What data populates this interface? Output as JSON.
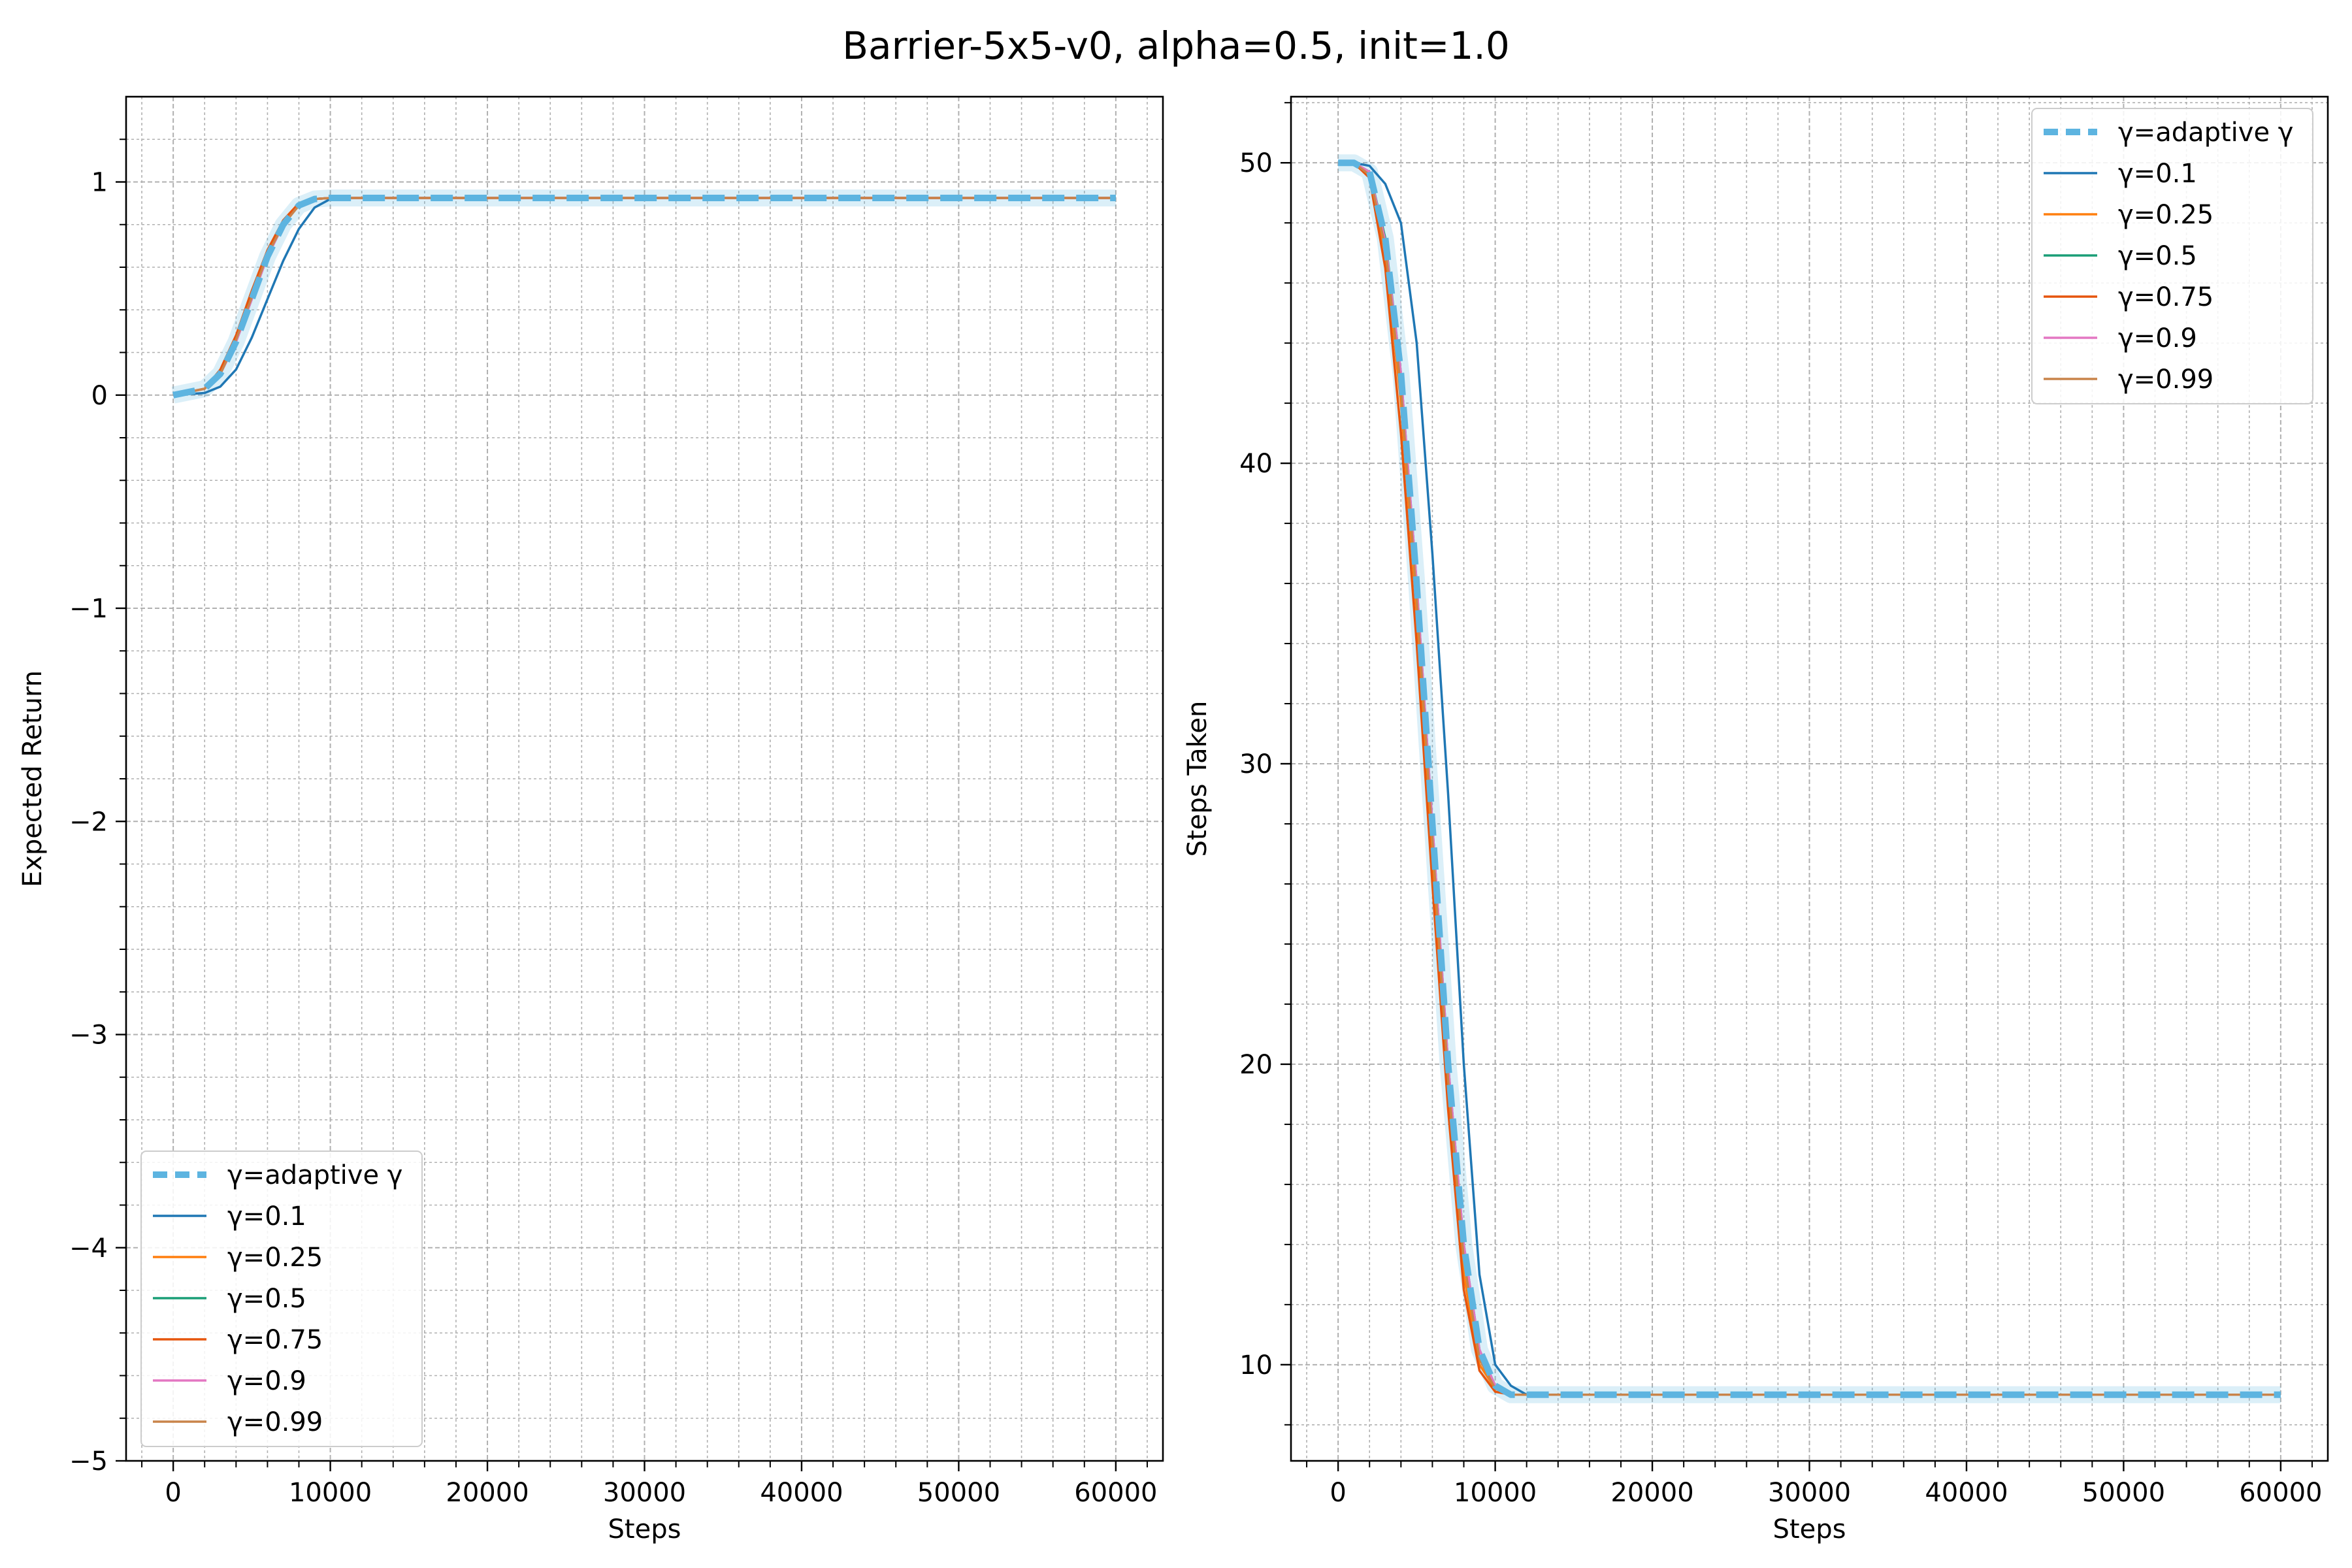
{
  "figure_title": "Barrier-5x5-v0, alpha=0.5, init=1.0",
  "colors": {
    "adaptive": "#5DB4E0",
    "g0_1": "#1f77b4",
    "g0_25": "#ff7f0e",
    "g0_5": "#1a9e77",
    "g0_75": "#e6550d",
    "g0_9": "#e377c2",
    "g0_99": "#c9844a",
    "grid": "#b0b0b0"
  },
  "chart_data": [
    {
      "type": "line",
      "title": "",
      "xlabel": "Steps",
      "ylabel": "Expected Return",
      "xlim": [
        -3000,
        63000
      ],
      "ylim": [
        -5,
        1.4
      ],
      "xticks": [
        0,
        10000,
        20000,
        30000,
        40000,
        50000,
        60000
      ],
      "xtick_labels": [
        "0",
        "10000",
        "20000",
        "30000",
        "40000",
        "50000",
        "60000"
      ],
      "yticks": [
        -5,
        -4,
        -3,
        -2,
        -1,
        0,
        1
      ],
      "ytick_labels": [
        "−5",
        "−4",
        "−3",
        "−2",
        "−1",
        "0",
        "1"
      ],
      "grid": true,
      "legend_position": "lower-left",
      "x": [
        0,
        2000,
        3000,
        4000,
        5000,
        6000,
        7000,
        8000,
        9000,
        10000,
        11000,
        12000,
        14000,
        20000,
        30000,
        40000,
        50000,
        60000
      ],
      "series": [
        {
          "name": "γ=adaptive γ",
          "color_key": "adaptive",
          "dashed": true,
          "values": [
            0,
            0.03,
            0.1,
            0.25,
            0.45,
            0.65,
            0.8,
            0.89,
            0.92,
            0.925,
            0.925,
            0.925,
            0.925,
            0.925,
            0.925,
            0.925,
            0.925,
            0.925
          ]
        },
        {
          "name": "γ=0.1",
          "color_key": "g0_1",
          "values": [
            0,
            0.01,
            0.04,
            0.12,
            0.27,
            0.45,
            0.63,
            0.78,
            0.88,
            0.92,
            0.925,
            0.925,
            0.925,
            0.925,
            0.925,
            0.925,
            0.925,
            0.925
          ]
        },
        {
          "name": "γ=0.25",
          "color_key": "g0_25",
          "values": [
            0,
            0.03,
            0.11,
            0.27,
            0.47,
            0.67,
            0.81,
            0.9,
            0.92,
            0.925,
            0.925,
            0.925,
            0.925,
            0.925,
            0.925,
            0.925,
            0.925,
            0.925
          ]
        },
        {
          "name": "γ=0.5",
          "color_key": "g0_5",
          "values": [
            0,
            0.03,
            0.1,
            0.25,
            0.45,
            0.65,
            0.8,
            0.89,
            0.92,
            0.925,
            0.925,
            0.925,
            0.925,
            0.925,
            0.925,
            0.925,
            0.925,
            0.925
          ]
        },
        {
          "name": "γ=0.75",
          "color_key": "g0_75",
          "values": [
            0,
            0.03,
            0.12,
            0.28,
            0.49,
            0.68,
            0.82,
            0.9,
            0.92,
            0.925,
            0.925,
            0.925,
            0.925,
            0.925,
            0.925,
            0.925,
            0.925,
            0.925
          ]
        },
        {
          "name": "γ=0.9",
          "color_key": "g0_9",
          "values": [
            0,
            0.03,
            0.1,
            0.25,
            0.45,
            0.65,
            0.8,
            0.89,
            0.92,
            0.925,
            0.925,
            0.925,
            0.925,
            0.925,
            0.925,
            0.925,
            0.925,
            0.925
          ]
        },
        {
          "name": "γ=0.99",
          "color_key": "g0_99",
          "values": [
            0,
            0.03,
            0.1,
            0.26,
            0.46,
            0.66,
            0.8,
            0.89,
            0.92,
            0.925,
            0.925,
            0.925,
            0.925,
            0.925,
            0.925,
            0.925,
            0.925,
            0.925
          ]
        }
      ]
    },
    {
      "type": "line",
      "title": "",
      "xlabel": "Steps",
      "ylabel": "Steps Taken",
      "xlim": [
        -3000,
        63000
      ],
      "ylim": [
        6.8,
        52.2
      ],
      "xticks": [
        0,
        10000,
        20000,
        30000,
        40000,
        50000,
        60000
      ],
      "xtick_labels": [
        "0",
        "10000",
        "20000",
        "30000",
        "40000",
        "50000",
        "60000"
      ],
      "yticks": [
        10,
        20,
        30,
        40,
        50
      ],
      "ytick_labels": [
        "10",
        "20",
        "30",
        "40",
        "50"
      ],
      "grid": true,
      "legend_position": "upper-right",
      "x": [
        0,
        1000,
        2000,
        3000,
        4000,
        5000,
        6000,
        7000,
        8000,
        9000,
        10000,
        11000,
        12000,
        14000,
        20000,
        30000,
        40000,
        50000,
        60000
      ],
      "series": [
        {
          "name": "γ=adaptive γ",
          "color_key": "adaptive",
          "dashed": true,
          "values": [
            50,
            50,
            49.7,
            47.5,
            43,
            36,
            28,
            20,
            14,
            10.5,
            9.3,
            9,
            9,
            9,
            9,
            9,
            9,
            9,
            9
          ]
        },
        {
          "name": "γ=0.1",
          "color_key": "g0_1",
          "values": [
            50,
            50,
            49.9,
            49.3,
            48,
            44,
            37,
            29,
            20,
            13,
            10,
            9.3,
            9,
            9,
            9,
            9,
            9,
            9,
            9
          ]
        },
        {
          "name": "γ=0.25",
          "color_key": "g0_25",
          "values": [
            50,
            50,
            49.6,
            47,
            42,
            35,
            27,
            19,
            13,
            10,
            9.2,
            9,
            9,
            9,
            9,
            9,
            9,
            9,
            9
          ]
        },
        {
          "name": "γ=0.5",
          "color_key": "g0_5",
          "values": [
            50,
            50,
            49.7,
            47.5,
            43,
            36,
            28,
            20,
            14,
            10.5,
            9.3,
            9,
            9,
            9,
            9,
            9,
            9,
            9,
            9
          ]
        },
        {
          "name": "γ=0.75",
          "color_key": "g0_75",
          "values": [
            50,
            50,
            49.5,
            46.5,
            41,
            34,
            26,
            18.5,
            12.5,
            9.8,
            9.1,
            9,
            9,
            9,
            9,
            9,
            9,
            9,
            9
          ]
        },
        {
          "name": "γ=0.9",
          "color_key": "g0_9",
          "values": [
            50,
            50,
            49.7,
            47.4,
            43,
            36,
            28,
            20,
            14,
            10.5,
            9.3,
            9,
            9,
            9,
            9,
            9,
            9,
            9,
            9
          ]
        },
        {
          "name": "γ=0.99",
          "color_key": "g0_99",
          "values": [
            50,
            50,
            49.6,
            47.2,
            42.5,
            35.5,
            27.5,
            19.5,
            13.5,
            10.2,
            9.2,
            9,
            9,
            9,
            9,
            9,
            9,
            9,
            9
          ]
        }
      ]
    }
  ]
}
